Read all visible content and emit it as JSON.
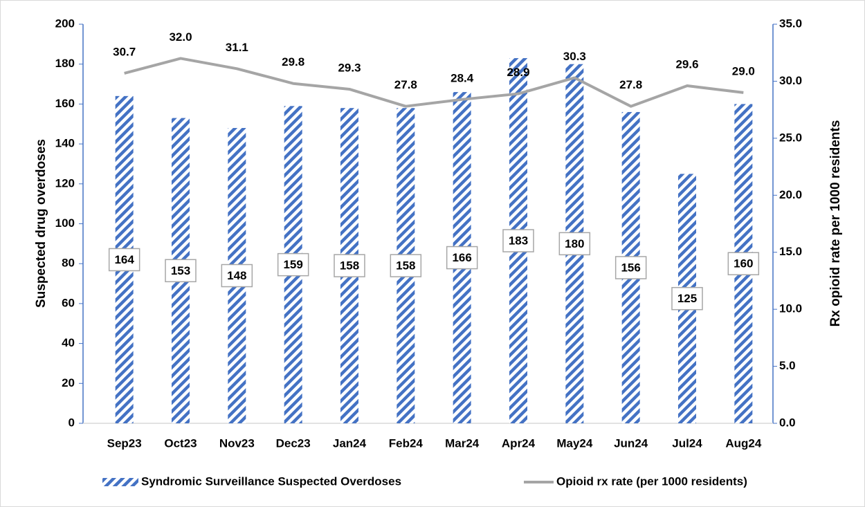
{
  "chart_data": {
    "type": "bar",
    "categories": [
      "Sep23",
      "Oct23",
      "Nov23",
      "Dec23",
      "Jan24",
      "Feb24",
      "Mar24",
      "Apr24",
      "May24",
      "Jun24",
      "Jul24",
      "Aug24"
    ],
    "series": [
      {
        "name": "Syndromic Surveillance Suspected Overdoses",
        "type": "bar",
        "color": "#4472c4",
        "values": [
          164,
          153,
          148,
          159,
          158,
          158,
          166,
          183,
          180,
          156,
          125,
          160
        ]
      },
      {
        "name": "Opioid rx rate (per 1000 residents)",
        "type": "line",
        "color": "#a5a5a5",
        "axis": "y2",
        "values": [
          30.7,
          32.0,
          31.1,
          29.8,
          29.3,
          27.8,
          28.4,
          28.9,
          30.3,
          27.8,
          29.6,
          29.0
        ],
        "value_labels": [
          "30.7",
          "32.0",
          "31.1",
          "29.8",
          "29.3",
          "27.8",
          "28.4",
          "28.9",
          "30.3",
          "27.8",
          "29.6",
          "29.0"
        ]
      }
    ],
    "y_label": "Suspected drug overdoses",
    "y2_label": "Rx opioid rate per 1000 residents",
    "ylim": [
      0,
      200
    ],
    "yticks": [
      0,
      20,
      40,
      60,
      80,
      100,
      120,
      140,
      160,
      180,
      200
    ],
    "y2lim": [
      0,
      35
    ],
    "y2ticks": [
      {
        "value": 0,
        "label": "0.0"
      },
      {
        "value": 5,
        "label": "5.0"
      },
      {
        "value": 10,
        "label": "10.0"
      },
      {
        "value": 15,
        "label": "15.0"
      },
      {
        "value": 20,
        "label": "20.0"
      },
      {
        "value": 25,
        "label": "25.0"
      },
      {
        "value": 30,
        "label": "30.0"
      },
      {
        "value": 35,
        "label": "35.0"
      }
    ],
    "legend": "bottom"
  }
}
